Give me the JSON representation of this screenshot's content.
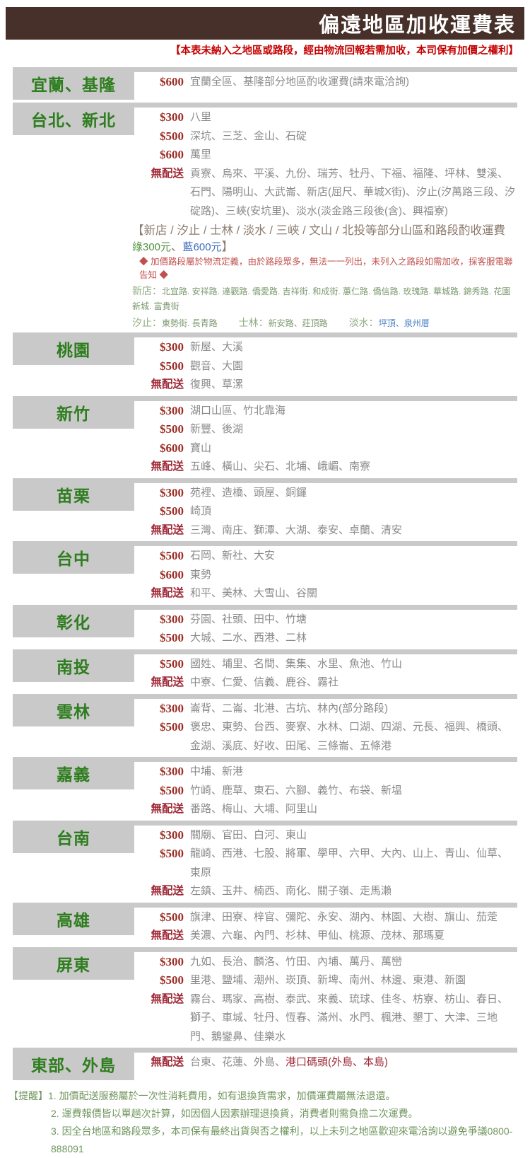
{
  "header": {
    "title": "偏遠地區加收運費表",
    "note": "【本表未納入之地區或路段，經由物流回報若需加收，本司保有加價之權利】"
  },
  "colors": {
    "header_bar": "#463029",
    "note_red": "#c40000",
    "region_green": "#2e7d1e",
    "price_red": "#9b2e26",
    "no_delivery_red": "#9f2936",
    "area_gray": "#8a8a8a",
    "box_gray": "#c9c9c9",
    "special_taupe": "#8d7c70",
    "green_tag": "#53933f",
    "blue_tag": "#3f6cc0",
    "diamond_red": "#c0504d"
  },
  "sections": [
    {
      "region": "宜蘭、基隆",
      "rows": [
        {
          "tag": "$600",
          "type": "price",
          "areas": "宜蘭全區、基隆部分地區酌收運費(請來電洽詢)"
        }
      ]
    },
    {
      "region": "台北、新北",
      "rows": [
        {
          "tag": "$300",
          "type": "price",
          "areas": "八里"
        },
        {
          "tag": "$500",
          "type": "price",
          "areas": "深坑、三芝、金山、石碇"
        },
        {
          "tag": "$600",
          "type": "price",
          "areas": "萬里"
        },
        {
          "tag": "無配送",
          "type": "nd",
          "areas": "貢寮、烏來、平溪、九份、瑞芳、牡丹、下福、福隆、坪林、雙溪、石門、陽明山、大武崙、新店(屈尺、華城X街)、汐止(汐萬路三段、汐碇路)、三峽(安坑里)、淡水(淡金路三段後(含)、興福寮)"
        }
      ],
      "special": {
        "headline_parts": [
          {
            "t": "【新店 / 汐止 / 士林 / 淡水 / 三峽 / 文山 / 北投等部分山區和路段酌收運費 ",
            "c": "main"
          },
          {
            "t": "綠300元",
            "c": "green"
          },
          {
            "t": "、",
            "c": "main"
          },
          {
            "t": "藍600元",
            "c": "blue"
          },
          {
            "t": "】",
            "c": "main"
          }
        ],
        "diamond_note": "◆ 加價路段屬於物流定義，由於路段眾多，無法一一列出，未列入之路段如需加收，採客服電聯告知 ◆",
        "street_lines": [
          [
            {
              "label": "新店：",
              "items": "北宜路. 安祥路. 達觀路. 僑愛路. 吉祥街. 和成街. 蕙仁路. 僑信路. 玫瑰路. 華城路. 錦秀路. 花園新城. 富貴街",
              "color": "green"
            }
          ],
          [
            {
              "label": "汐止：",
              "items": "東勢街. 長青路",
              "color": "green"
            },
            {
              "label": "士林：",
              "items": "新安路、莊頂路",
              "color": "green"
            },
            {
              "label": "淡水：",
              "items": "坪頂、泉州厝",
              "color": "blue"
            }
          ]
        ]
      }
    },
    {
      "region": "桃園",
      "rows": [
        {
          "tag": "$300",
          "type": "price",
          "areas": "新屋、大溪"
        },
        {
          "tag": "$500",
          "type": "price",
          "areas": "觀音、大園"
        },
        {
          "tag": "無配送",
          "type": "nd",
          "areas": "復興、草漯"
        }
      ]
    },
    {
      "region": "新竹",
      "rows": [
        {
          "tag": "$300",
          "type": "price",
          "areas": "湖口山區、竹北靠海"
        },
        {
          "tag": "$500",
          "type": "price",
          "areas": "新豐、後湖"
        },
        {
          "tag": "$600",
          "type": "price",
          "areas": "寶山"
        },
        {
          "tag": "無配送",
          "type": "nd",
          "areas": "五峰、橫山、尖石、北埔、峨嵋、南寮"
        }
      ]
    },
    {
      "region": "苗栗",
      "rows": [
        {
          "tag": "$300",
          "type": "price",
          "areas": "苑裡、造橋、頭屋、銅鑼"
        },
        {
          "tag": "$500",
          "type": "price",
          "areas": "崎頂"
        },
        {
          "tag": "無配送",
          "type": "nd",
          "areas": "三灣、南庄、獅潭、大湖、泰安、卓蘭、清安"
        }
      ]
    },
    {
      "region": "台中",
      "rows": [
        {
          "tag": "$500",
          "type": "price",
          "areas": "石岡、新社、大安"
        },
        {
          "tag": "$600",
          "type": "price",
          "areas": "東勢"
        },
        {
          "tag": "無配送",
          "type": "nd",
          "areas": "和平、美林、大雪山、谷關"
        }
      ]
    },
    {
      "region": "彰化",
      "rows": [
        {
          "tag": "$300",
          "type": "price",
          "areas": "芬園、社頭、田中、竹塘"
        },
        {
          "tag": "$500",
          "type": "price",
          "areas": "大城、二水、西港、二林"
        }
      ]
    },
    {
      "region": "南投",
      "rows": [
        {
          "tag": "$500",
          "type": "price",
          "areas": "國姓、埔里、名間、集集、水里、魚池、竹山"
        },
        {
          "tag": "無配送",
          "type": "nd",
          "areas": "中寮、仁愛、信義、鹿谷、霧社"
        }
      ]
    },
    {
      "region": "雲林",
      "rows": [
        {
          "tag": "$300",
          "type": "price",
          "areas": "崙背、二崙、北港、古坑、林內(部分路段)"
        },
        {
          "tag": "$500",
          "type": "price",
          "areas": "褒忠、東勢、台西、麥寮、水林、口湖、四湖、元長、福興、橋頭、金湖、溪底、好收、田尾、三條崙、五條港"
        }
      ]
    },
    {
      "region": "嘉義",
      "rows": [
        {
          "tag": "$300",
          "type": "price",
          "areas": "中埔、新港"
        },
        {
          "tag": "$500",
          "type": "price",
          "areas": "竹崎、鹿草、東石、六腳、義竹、布袋、新塭"
        },
        {
          "tag": "無配送",
          "type": "nd",
          "areas": "番路、梅山、大埔、阿里山"
        }
      ]
    },
    {
      "region": "台南",
      "rows": [
        {
          "tag": "$300",
          "type": "price",
          "areas": "關廟、官田、白河、東山"
        },
        {
          "tag": "$500",
          "type": "price",
          "areas": "龍崎、西港、七股、將軍、學甲、六甲、大內、山上、青山、仙草、東原"
        },
        {
          "tag": "無配送",
          "type": "nd",
          "areas": "左鎮、玉井、楠西、南化、關子嶺、走馬瀨"
        }
      ]
    },
    {
      "region": "高雄",
      "rows": [
        {
          "tag": "$500",
          "type": "price",
          "areas": "旗津、田寮、梓官、彌陀、永安、湖內、林園、大樹、旗山、茄萣"
        },
        {
          "tag": "無配送",
          "type": "nd",
          "areas": "美濃、六龜、內門、杉林、甲仙、桃源、茂林、那瑪夏"
        }
      ]
    },
    {
      "region": "屏東",
      "rows": [
        {
          "tag": "$300",
          "type": "price",
          "areas": "九如、長治、麟洛、竹田、內埔、萬丹、萬巒"
        },
        {
          "tag": "$500",
          "type": "price",
          "areas": "里港、鹽埔、潮州、崁頂、新埤、南州、林邊、東港、新園"
        },
        {
          "tag": "無配送",
          "type": "nd",
          "areas": "霧台、瑪家、高樹、泰武、來義、琉球、佳冬、枋寮、枋山、春日、獅子、車城、牡丹、恆春、滿州、水門、楓港、墾丁、大津、三地門、鵝鑾鼻、佳樂水"
        }
      ]
    },
    {
      "region": "東部、外島",
      "rows": [
        {
          "tag": "無配送",
          "type": "nd",
          "segments": [
            {
              "text": "台東、花蓮、外島、",
              "red": false
            },
            {
              "text": "港口碼頭(外島、本島)",
              "red": true
            }
          ]
        }
      ]
    }
  ],
  "footer": {
    "label": "【提醒】",
    "items": [
      "1. 加價配送服務屬於一次性消耗費用，如有退換貨需求，加價運費屬無法退還。",
      "2. 運費報價皆以單趟次計算，如因個人因素辦理退換貨，消費者則需負擔二次運費。",
      "3. 因全台地區和路段眾多，本司保有最終出貨與否之權利，以上未列之地區歡迎來電洽詢以避免爭議0800-888091"
    ]
  }
}
